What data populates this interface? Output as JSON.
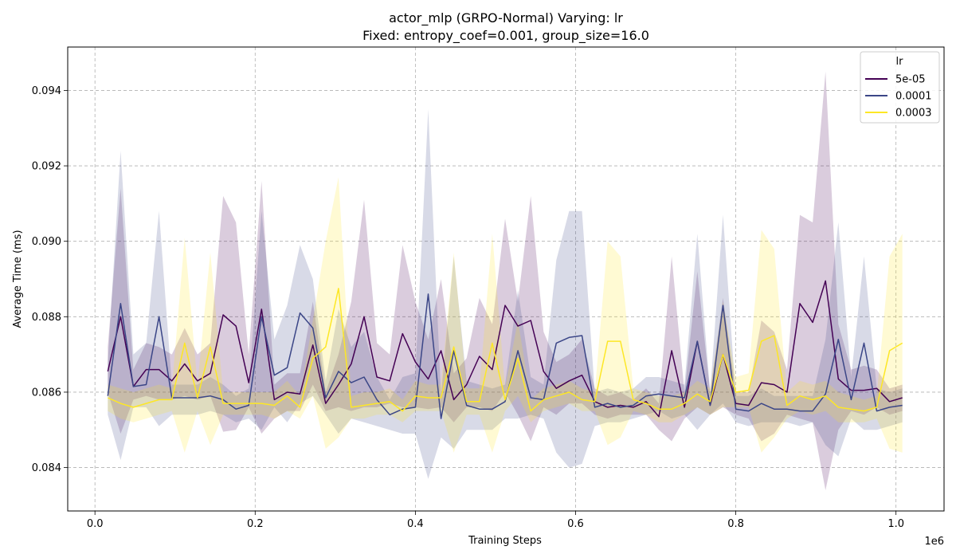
{
  "chart_data": {
    "type": "line",
    "title": "actor_mlp (GRPO-Normal) Varying: lr",
    "subtitle": "Fixed: entropy_coef=0.001, group_size=16.0",
    "xlabel": "Training Steps",
    "ylabel": "Average Time (ms)",
    "x_offset_label": "1e6",
    "xlim": [
      -0.034,
      1.06
    ],
    "ylim": [
      0.08285,
      0.09515
    ],
    "x_ticks": [
      0.0,
      0.2,
      0.4,
      0.6,
      0.8,
      1.0
    ],
    "x_tick_labels": [
      "0.0",
      "0.2",
      "0.4",
      "0.6",
      "0.8",
      "1.0"
    ],
    "y_ticks": [
      0.084,
      0.086,
      0.088,
      0.09,
      0.092,
      0.094
    ],
    "y_tick_labels": [
      "0.084",
      "0.086",
      "0.088",
      "0.090",
      "0.092",
      "0.094"
    ],
    "grid": true,
    "legend": {
      "title": "lr",
      "placement": "top-right"
    },
    "x": [
      0.016,
      0.032,
      0.048,
      0.064,
      0.08,
      0.096,
      0.112,
      0.128,
      0.144,
      0.16,
      0.176,
      0.192,
      0.208,
      0.224,
      0.24,
      0.256,
      0.272,
      0.288,
      0.304,
      0.32,
      0.336,
      0.352,
      0.368,
      0.384,
      0.4,
      0.416,
      0.432,
      0.448,
      0.464,
      0.48,
      0.496,
      0.512,
      0.528,
      0.544,
      0.56,
      0.576,
      0.592,
      0.608,
      0.624,
      0.64,
      0.656,
      0.672,
      0.688,
      0.704,
      0.72,
      0.736,
      0.752,
      0.768,
      0.784,
      0.8,
      0.816,
      0.832,
      0.848,
      0.864,
      0.88,
      0.896,
      0.912,
      0.928,
      0.944,
      0.96,
      0.976,
      0.992,
      1.008
    ],
    "series": [
      {
        "name": "5e-05",
        "color": "#440154",
        "values": [
          0.08655,
          0.088,
          0.08615,
          0.0866,
          0.0866,
          0.0863,
          0.08675,
          0.0863,
          0.0865,
          0.08805,
          0.08775,
          0.08625,
          0.0882,
          0.0858,
          0.086,
          0.08595,
          0.08725,
          0.0857,
          0.0862,
          0.08675,
          0.088,
          0.0864,
          0.0863,
          0.08755,
          0.0868,
          0.08635,
          0.0871,
          0.0858,
          0.0862,
          0.08695,
          0.0866,
          0.0883,
          0.08775,
          0.0879,
          0.08655,
          0.0861,
          0.0863,
          0.08645,
          0.08575,
          0.0856,
          0.08565,
          0.0856,
          0.08575,
          0.08535,
          0.0871,
          0.0856,
          0.08735,
          0.08565,
          0.087,
          0.0857,
          0.08565,
          0.08625,
          0.0862,
          0.086,
          0.08835,
          0.08785,
          0.08895,
          0.08635,
          0.08605,
          0.08605,
          0.0861,
          0.08575,
          0.08585
        ],
        "lower": [
          0.086,
          0.0849,
          0.0858,
          0.0859,
          0.0858,
          0.0858,
          0.0859,
          0.0858,
          0.0859,
          0.08495,
          0.085,
          0.0856,
          0.0849,
          0.0853,
          0.0855,
          0.0855,
          0.0862,
          0.0855,
          0.0856,
          0.0855,
          0.0856,
          0.0856,
          0.0857,
          0.0856,
          0.0856,
          0.08555,
          0.0856,
          0.0852,
          0.0856,
          0.0856,
          0.0855,
          0.086,
          0.0854,
          0.0847,
          0.0856,
          0.0854,
          0.0857,
          0.0857,
          0.0854,
          0.0853,
          0.0854,
          0.0854,
          0.0854,
          0.085,
          0.0847,
          0.0853,
          0.0856,
          0.0854,
          0.0856,
          0.0854,
          0.0853,
          0.0847,
          0.0849,
          0.0854,
          0.0853,
          0.0852,
          0.0834,
          0.085,
          0.0855,
          0.0854,
          0.0856,
          0.0854,
          0.0855
        ],
        "upper": [
          0.0872,
          0.0914,
          0.0866,
          0.0873,
          0.0872,
          0.087,
          0.0877,
          0.087,
          0.0873,
          0.0912,
          0.0905,
          0.087,
          0.0916,
          0.0862,
          0.0865,
          0.0865,
          0.0884,
          0.086,
          0.087,
          0.0884,
          0.0911,
          0.0873,
          0.087,
          0.0899,
          0.0884,
          0.0874,
          0.089,
          0.0865,
          0.0869,
          0.0885,
          0.0878,
          0.0906,
          0.0884,
          0.0912,
          0.0876,
          0.0868,
          0.087,
          0.0874,
          0.0861,
          0.0859,
          0.086,
          0.0858,
          0.0861,
          0.0857,
          0.0896,
          0.086,
          0.0892,
          0.086,
          0.0885,
          0.086,
          0.086,
          0.0879,
          0.0876,
          0.0866,
          0.0907,
          0.0905,
          0.0945,
          0.0878,
          0.0866,
          0.0867,
          0.0866,
          0.0861,
          0.0862
        ]
      },
      {
        "name": "0.0001",
        "color": "#3b4687",
        "values": [
          0.0859,
          0.08835,
          0.08615,
          0.0862,
          0.088,
          0.08585,
          0.08585,
          0.08585,
          0.0859,
          0.0858,
          0.08555,
          0.08565,
          0.088,
          0.08645,
          0.08665,
          0.0881,
          0.0877,
          0.08585,
          0.08655,
          0.08625,
          0.0864,
          0.0858,
          0.0854,
          0.08555,
          0.0856,
          0.0886,
          0.0853,
          0.0871,
          0.08565,
          0.08555,
          0.08555,
          0.08575,
          0.0871,
          0.08585,
          0.0858,
          0.0873,
          0.08745,
          0.0875,
          0.0856,
          0.0857,
          0.0856,
          0.08565,
          0.0859,
          0.08595,
          0.0859,
          0.08585,
          0.08735,
          0.08565,
          0.0883,
          0.08555,
          0.0855,
          0.0857,
          0.08555,
          0.08555,
          0.0855,
          0.0855,
          0.08595,
          0.0874,
          0.0858,
          0.0873,
          0.0855,
          0.0856,
          0.08565
        ],
        "lower": [
          0.0854,
          0.0842,
          0.0856,
          0.0856,
          0.0851,
          0.0854,
          0.0854,
          0.0854,
          0.0855,
          0.0854,
          0.0852,
          0.0853,
          0.085,
          0.0856,
          0.0852,
          0.0857,
          0.0859,
          0.0854,
          0.0849,
          0.0853,
          0.0852,
          0.0851,
          0.085,
          0.0849,
          0.0849,
          0.0837,
          0.0848,
          0.0845,
          0.085,
          0.085,
          0.085,
          0.0853,
          0.0853,
          0.0854,
          0.0853,
          0.0844,
          0.084,
          0.0841,
          0.0851,
          0.0852,
          0.0852,
          0.0853,
          0.0854,
          0.0855,
          0.0853,
          0.0854,
          0.085,
          0.0854,
          0.0857,
          0.0852,
          0.0851,
          0.0852,
          0.0852,
          0.0852,
          0.0851,
          0.0852,
          0.0846,
          0.0843,
          0.0853,
          0.085,
          0.085,
          0.0851,
          0.0852
        ],
        "upper": [
          0.0868,
          0.0924,
          0.087,
          0.0873,
          0.0908,
          0.0862,
          0.0862,
          0.0862,
          0.0864,
          0.0862,
          0.0859,
          0.0861,
          0.0908,
          0.0874,
          0.0883,
          0.0899,
          0.089,
          0.0863,
          0.0882,
          0.0872,
          0.0876,
          0.0864,
          0.0858,
          0.0864,
          0.0865,
          0.0935,
          0.0859,
          0.0896,
          0.0863,
          0.0862,
          0.0861,
          0.0862,
          0.0887,
          0.0864,
          0.0862,
          0.0895,
          0.0908,
          0.0908,
          0.086,
          0.0861,
          0.086,
          0.0861,
          0.0864,
          0.0864,
          0.0863,
          0.0862,
          0.0902,
          0.086,
          0.0907,
          0.0859,
          0.0859,
          0.0861,
          0.0859,
          0.0859,
          0.0859,
          0.0859,
          0.0874,
          0.0905,
          0.0864,
          0.0896,
          0.0861,
          0.086,
          0.0861
        ]
      },
      {
        "name": "0.0003",
        "color": "#fde725",
        "values": [
          0.08585,
          0.0857,
          0.0856,
          0.0857,
          0.0858,
          0.0858,
          0.0873,
          0.08585,
          0.0872,
          0.0857,
          0.0857,
          0.0857,
          0.0857,
          0.08565,
          0.0859,
          0.0856,
          0.0869,
          0.0872,
          0.08875,
          0.0856,
          0.08565,
          0.0857,
          0.08575,
          0.0855,
          0.0859,
          0.08585,
          0.08585,
          0.0872,
          0.08575,
          0.08575,
          0.0873,
          0.0858,
          0.0869,
          0.0855,
          0.0858,
          0.0859,
          0.086,
          0.0858,
          0.08575,
          0.08735,
          0.08735,
          0.0858,
          0.0857,
          0.08555,
          0.08555,
          0.0857,
          0.08595,
          0.08575,
          0.087,
          0.086,
          0.08605,
          0.08735,
          0.0875,
          0.08565,
          0.0859,
          0.0858,
          0.0859,
          0.0856,
          0.08555,
          0.0855,
          0.0856,
          0.0871,
          0.0873
        ],
        "lower": [
          0.0855,
          0.0853,
          0.0852,
          0.0853,
          0.0854,
          0.0855,
          0.0844,
          0.0855,
          0.0846,
          0.0854,
          0.0854,
          0.0854,
          0.0854,
          0.0853,
          0.0855,
          0.0853,
          0.0859,
          0.0845,
          0.0848,
          0.0853,
          0.0853,
          0.0854,
          0.0854,
          0.0852,
          0.0855,
          0.0855,
          0.0855,
          0.0844,
          0.0854,
          0.0854,
          0.0844,
          0.0855,
          0.0859,
          0.0852,
          0.0855,
          0.0856,
          0.0857,
          0.0855,
          0.0855,
          0.0846,
          0.0848,
          0.0855,
          0.0854,
          0.0852,
          0.0852,
          0.0854,
          0.0856,
          0.0854,
          0.0856,
          0.0856,
          0.0856,
          0.0844,
          0.0848,
          0.0853,
          0.0855,
          0.0854,
          0.0855,
          0.0852,
          0.0852,
          0.0852,
          0.0853,
          0.0845,
          0.0844
        ],
        "upper": [
          0.0862,
          0.0861,
          0.086,
          0.0861,
          0.0862,
          0.0861,
          0.0901,
          0.0862,
          0.0897,
          0.086,
          0.086,
          0.086,
          0.086,
          0.086,
          0.0863,
          0.0859,
          0.0879,
          0.09,
          0.0917,
          0.0859,
          0.086,
          0.086,
          0.0861,
          0.0858,
          0.0863,
          0.0862,
          0.0862,
          0.0897,
          0.0861,
          0.0861,
          0.0902,
          0.0861,
          0.0879,
          0.0858,
          0.0861,
          0.0862,
          0.0863,
          0.0861,
          0.086,
          0.09,
          0.0896,
          0.0861,
          0.086,
          0.0859,
          0.0859,
          0.086,
          0.0863,
          0.0861,
          0.0884,
          0.0864,
          0.0865,
          0.0903,
          0.0898,
          0.086,
          0.0863,
          0.0862,
          0.0863,
          0.086,
          0.0859,
          0.0858,
          0.0859,
          0.0896,
          0.0902
        ]
      }
    ]
  }
}
